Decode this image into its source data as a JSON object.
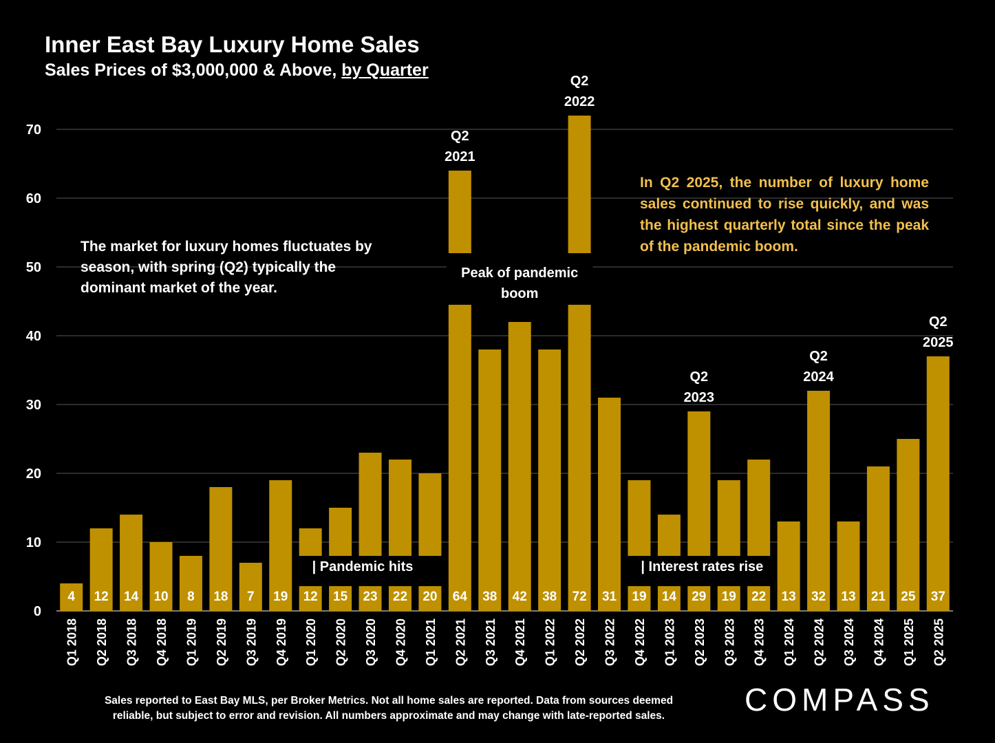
{
  "header": {
    "title": "Inner East Bay Luxury Home Sales",
    "subtitle_prefix": "Sales Prices of $3,000,000 & Above, ",
    "subtitle_emphasis": "by Quarter"
  },
  "notes": {
    "left": "The market for luxury homes fluctuates by season, with spring (Q2) typically the dominant market of the year.",
    "right": "In Q2 2025, the number of luxury home sales continued to rise quickly, and was the highest quarterly total since the peak of the pandemic boom."
  },
  "footer": {
    "line1": "Sales reported to East Bay MLS, per Broker Metrics. Not all home sales are reported. Data from sources deemed",
    "line2": "reliable, but subject to error and revision. All numbers approximate and may change with late-reported sales."
  },
  "logo": {
    "text": "COMPASS"
  },
  "chart_data": {
    "type": "bar",
    "title": "Inner East Bay Luxury Home Sales",
    "ylim": [
      0,
      70
    ],
    "yticks": [
      0,
      10,
      20,
      30,
      40,
      50,
      60,
      70
    ],
    "grid": true,
    "bar_color": "#bf9000",
    "categories": [
      "Q1 2018",
      "Q2 2018",
      "Q3 2018",
      "Q4 2018",
      "Q1 2019",
      "Q2 2019",
      "Q3 2019",
      "Q4 2019",
      "Q1 2020",
      "Q2 2020",
      "Q3 2020",
      "Q4 2020",
      "Q1 2021",
      "Q2 2021",
      "Q3 2021",
      "Q4 2021",
      "Q1 2022",
      "Q2 2022",
      "Q3 2022",
      "Q4 2022",
      "Q1 2023",
      "Q2 2023",
      "Q3 2023",
      "Q4 2023",
      "Q1 2024",
      "Q2 2024",
      "Q3 2024",
      "Q4 2024",
      "Q1 2025",
      "Q2 2025"
    ],
    "values": [
      4,
      12,
      14,
      10,
      8,
      18,
      7,
      19,
      12,
      15,
      23,
      22,
      20,
      64,
      38,
      42,
      38,
      72,
      31,
      19,
      14,
      29,
      19,
      22,
      13,
      32,
      13,
      21,
      25,
      37
    ],
    "top_labels": [
      {
        "index": 13,
        "line1": "Q2",
        "line2": "2021"
      },
      {
        "index": 17,
        "line1": "Q2",
        "line2": "2022"
      },
      {
        "index": 21,
        "line1": "Q2",
        "line2": "2023"
      },
      {
        "index": 25,
        "line1": "Q2",
        "line2": "2024"
      },
      {
        "index": 29,
        "line1": "Q2",
        "line2": "2025"
      }
    ],
    "annotations": [
      {
        "text": "| Pandemic hits",
        "from_index": 8,
        "to_index": 12,
        "value": 5.8
      },
      {
        "text": "| Interest rates rise",
        "from_index": 19,
        "to_index": 23,
        "value": 5.8
      },
      {
        "line1": "Peak of pandemic",
        "line2": "boom",
        "from_index": 13,
        "to_index": 17,
        "value": 48.5
      }
    ]
  }
}
